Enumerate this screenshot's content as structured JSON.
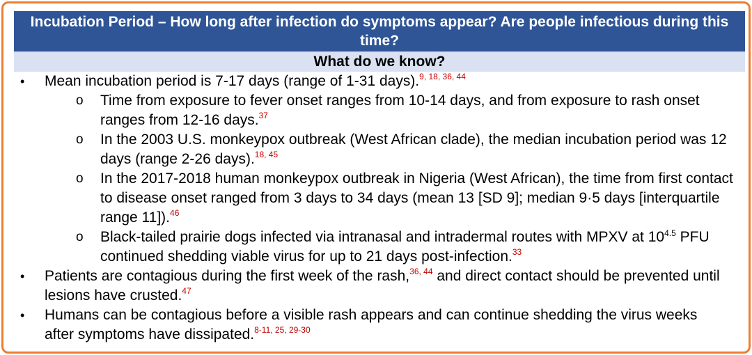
{
  "header": {
    "title": "Incubation Period – How long after infection do symptoms appear? Are people infectious during this time?",
    "subtitle": "What do we know?"
  },
  "bullets": [
    {
      "text": "Mean incubation period is 7-17 days (range of 1-31 days).",
      "refs": "9, 18, 36, 44"
    },
    {
      "text": "Time from exposure to fever onset ranges from 10-14 days, and from exposure to rash onset ranges from 12-16 days.",
      "refs": "37"
    },
    {
      "text": "In the 2003 U.S. monkeypox outbreak (West African clade), the median incubation period was 12 days (range 2-26 days).",
      "refs": "18, 45"
    },
    {
      "text": "In the 2017-2018 human monkeypox outbreak in Nigeria (West African), the time from first contact to disease onset ranged from 3 days to 34 days (mean 13 [SD 9]; median 9·5 days [interquartile range 11]).",
      "refs": "46"
    },
    {
      "text_a": "Black-tailed prairie dogs infected via intranasal and intradermal routes with MPXV at 10",
      "exponent": "4.5",
      "text_b": " PFU continued shedding viable virus for up to 21 days post-infection.",
      "refs": "33"
    },
    {
      "text_a": "Patients are contagious during the first week of the rash,",
      "refs_a": "36, 44",
      "text_b": " and direct contact should be prevented until lesions have crusted.",
      "refs": "47"
    },
    {
      "text": "Humans can be contagious before a visible rash appears and can continue shedding the virus weeks after symptoms have dissipated.",
      "refs": "8-11, 25, 29-30"
    }
  ],
  "markers": {
    "level1": "•",
    "level2": "o"
  },
  "colors": {
    "border": "#ED7D31",
    "title_bg": "#2F5597",
    "subtitle_bg": "#D9E1F2",
    "reference": "#C00000"
  }
}
